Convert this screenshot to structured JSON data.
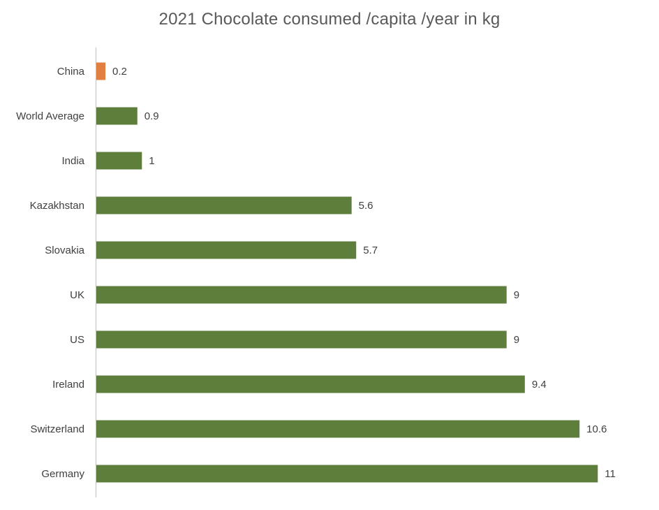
{
  "chart_data": {
    "type": "bar",
    "orientation": "horizontal",
    "title": "2021 Chocolate consumed /capita /year in kg",
    "xlabel": "",
    "ylabel": "",
    "xlim": [
      0,
      11
    ],
    "grid": false,
    "legend": "none",
    "categories": [
      "China",
      "World Average",
      "India",
      "Kazakhstan",
      "Slovakia",
      "UK",
      "US",
      "Ireland",
      "Switzerland",
      "Germany"
    ],
    "values": [
      0.2,
      0.9,
      1,
      5.6,
      5.7,
      9,
      9,
      9.4,
      10.6,
      11
    ],
    "value_labels": [
      "0.2",
      "0.9",
      "1",
      "5.6",
      "5.7",
      "9",
      "9",
      "9.4",
      "10.6",
      "11"
    ],
    "colors": {
      "default": "#5e7f3c",
      "highlight": "#e07f40",
      "highlight_category": "China",
      "axis": "#bfbfbf",
      "text": "#404040",
      "title": "#595959"
    }
  }
}
